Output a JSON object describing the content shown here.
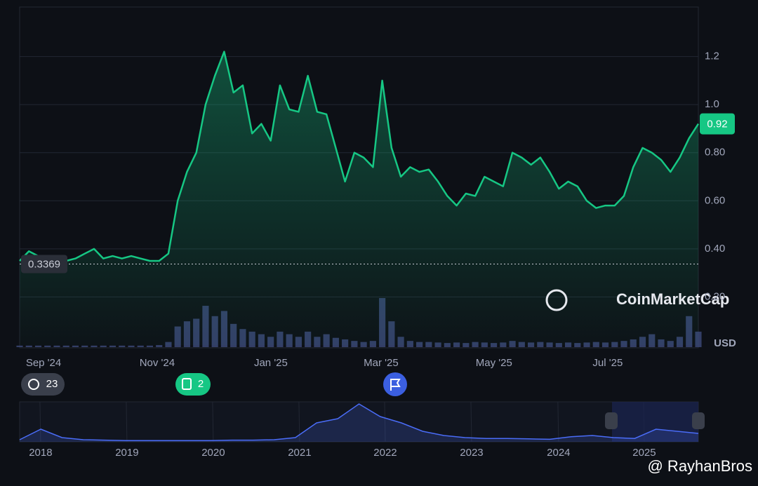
{
  "chart_data": {
    "type": "line",
    "series": [
      {
        "name": "Price",
        "color": "#16c784",
        "values": [
          0.35,
          0.39,
          0.37,
          0.36,
          0.36,
          0.35,
          0.36,
          0.38,
          0.4,
          0.36,
          0.37,
          0.36,
          0.37,
          0.36,
          0.35,
          0.35,
          0.38,
          0.6,
          0.72,
          0.8,
          1.0,
          1.12,
          1.22,
          1.05,
          1.08,
          0.88,
          0.92,
          0.85,
          1.08,
          0.98,
          0.97,
          1.12,
          0.97,
          0.96,
          0.82,
          0.68,
          0.8,
          0.78,
          0.74,
          1.1,
          0.82,
          0.7,
          0.74,
          0.72,
          0.73,
          0.68,
          0.62,
          0.58,
          0.63,
          0.62,
          0.7,
          0.68,
          0.66,
          0.8,
          0.78,
          0.75,
          0.78,
          0.72,
          0.65,
          0.68,
          0.66,
          0.6,
          0.57,
          0.58,
          0.58,
          0.62,
          0.74,
          0.82,
          0.8,
          0.77,
          0.72,
          0.78,
          0.86,
          0.92
        ]
      }
    ],
    "ylim": [
      0,
      1.4
    ],
    "yticks": [
      {
        "value": 0.2,
        "label": "0.20"
      },
      {
        "value": 0.4,
        "label": "0.40"
      },
      {
        "value": 0.6,
        "label": "0.60"
      },
      {
        "value": 0.8,
        "label": "0.80"
      },
      {
        "value": 1.0,
        "label": "1.0"
      },
      1.2
    ],
    "xlim": [
      0,
      73
    ],
    "xticks": [
      {
        "value": 2.57,
        "label": "Sep '24"
      },
      {
        "value": 14.79,
        "label": "Nov '24"
      },
      {
        "value": 27.02,
        "label": "Jan '25"
      },
      {
        "value": 38.87,
        "label": "Mar '25"
      },
      {
        "value": 51.02,
        "label": "May '25"
      },
      {
        "value": 63.25,
        "label": "Jul '25"
      }
    ],
    "grid": true,
    "reference_line": {
      "value": 0.3369,
      "label": "0.3369"
    },
    "current_price": 0.92,
    "axis_unit": "USD",
    "watermark": "CoinMarketCap",
    "volume": {
      "color": "#3d4a7a",
      "values": [
        3,
        3,
        3,
        3,
        3,
        3,
        3,
        3,
        3,
        3,
        3,
        3,
        3,
        3,
        3,
        4,
        10,
        40,
        50,
        55,
        80,
        60,
        70,
        45,
        35,
        30,
        25,
        20,
        30,
        25,
        20,
        30,
        20,
        25,
        18,
        15,
        12,
        10,
        12,
        95,
        50,
        20,
        12,
        10,
        10,
        9,
        8,
        9,
        8,
        10,
        9,
        8,
        9,
        12,
        10,
        9,
        10,
        9,
        8,
        9,
        8,
        9,
        10,
        9,
        10,
        12,
        15,
        20,
        25,
        15,
        12,
        20,
        60,
        30
      ]
    },
    "badges": [
      {
        "label": "23"
      },
      {
        "label": "2"
      }
    ],
    "navigator": {
      "color": "#4a6cf7",
      "values": [
        5,
        30,
        10,
        5,
        4,
        3,
        3,
        3,
        3,
        3,
        4,
        4,
        5,
        10,
        45,
        55,
        90,
        60,
        45,
        25,
        15,
        10,
        8,
        8,
        7,
        6,
        12,
        15,
        10,
        8,
        30,
        25,
        20
      ],
      "xlim": [
        0,
        32
      ],
      "xticks": [
        {
          "value": 0.99,
          "label": "2018"
        },
        {
          "value": 5.06,
          "label": "2019"
        },
        {
          "value": 9.13,
          "label": "2020"
        },
        {
          "value": 13.2,
          "label": "2021"
        },
        {
          "value": 17.24,
          "label": "2022"
        },
        {
          "value": 21.31,
          "label": "2023"
        },
        {
          "value": 25.41,
          "label": "2024"
        },
        {
          "value": 29.45,
          "label": "2025"
        }
      ]
    },
    "credit": "@ RayhanBros"
  }
}
